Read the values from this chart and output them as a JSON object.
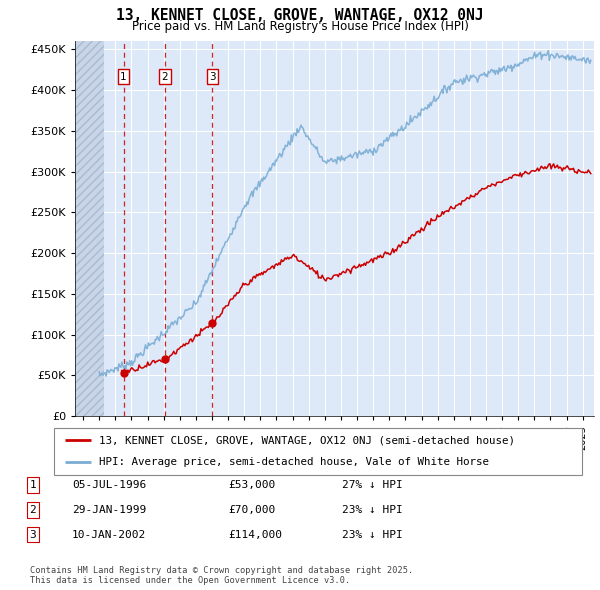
{
  "title": "13, KENNET CLOSE, GROVE, WANTAGE, OX12 0NJ",
  "subtitle": "Price paid vs. HM Land Registry's House Price Index (HPI)",
  "legend_label_red": "13, KENNET CLOSE, GROVE, WANTAGE, OX12 0NJ (semi-detached house)",
  "legend_label_blue": "HPI: Average price, semi-detached house, Vale of White Horse",
  "footer": "Contains HM Land Registry data © Crown copyright and database right 2025.\nThis data is licensed under the Open Government Licence v3.0.",
  "transactions": [
    {
      "num": 1,
      "date": "05-JUL-1996",
      "price": 53000,
      "pct": "27%",
      "dir": "↓",
      "x_year": 1996.51
    },
    {
      "num": 2,
      "date": "29-JAN-1999",
      "price": 70000,
      "pct": "23%",
      "dir": "↓",
      "x_year": 1999.08
    },
    {
      "num": 3,
      "date": "10-JAN-2002",
      "price": 114000,
      "pct": "23%",
      "dir": "↓",
      "x_year": 2002.03
    }
  ],
  "ylim": [
    0,
    460000
  ],
  "xlim_start": 1993.5,
  "xlim_end": 2025.7,
  "hatch_end": 1995.3,
  "background_color": "#ffffff",
  "plot_bg_color": "#dde8f8",
  "grid_color": "#ffffff",
  "red_color": "#cc0000",
  "blue_color": "#7aadd4"
}
